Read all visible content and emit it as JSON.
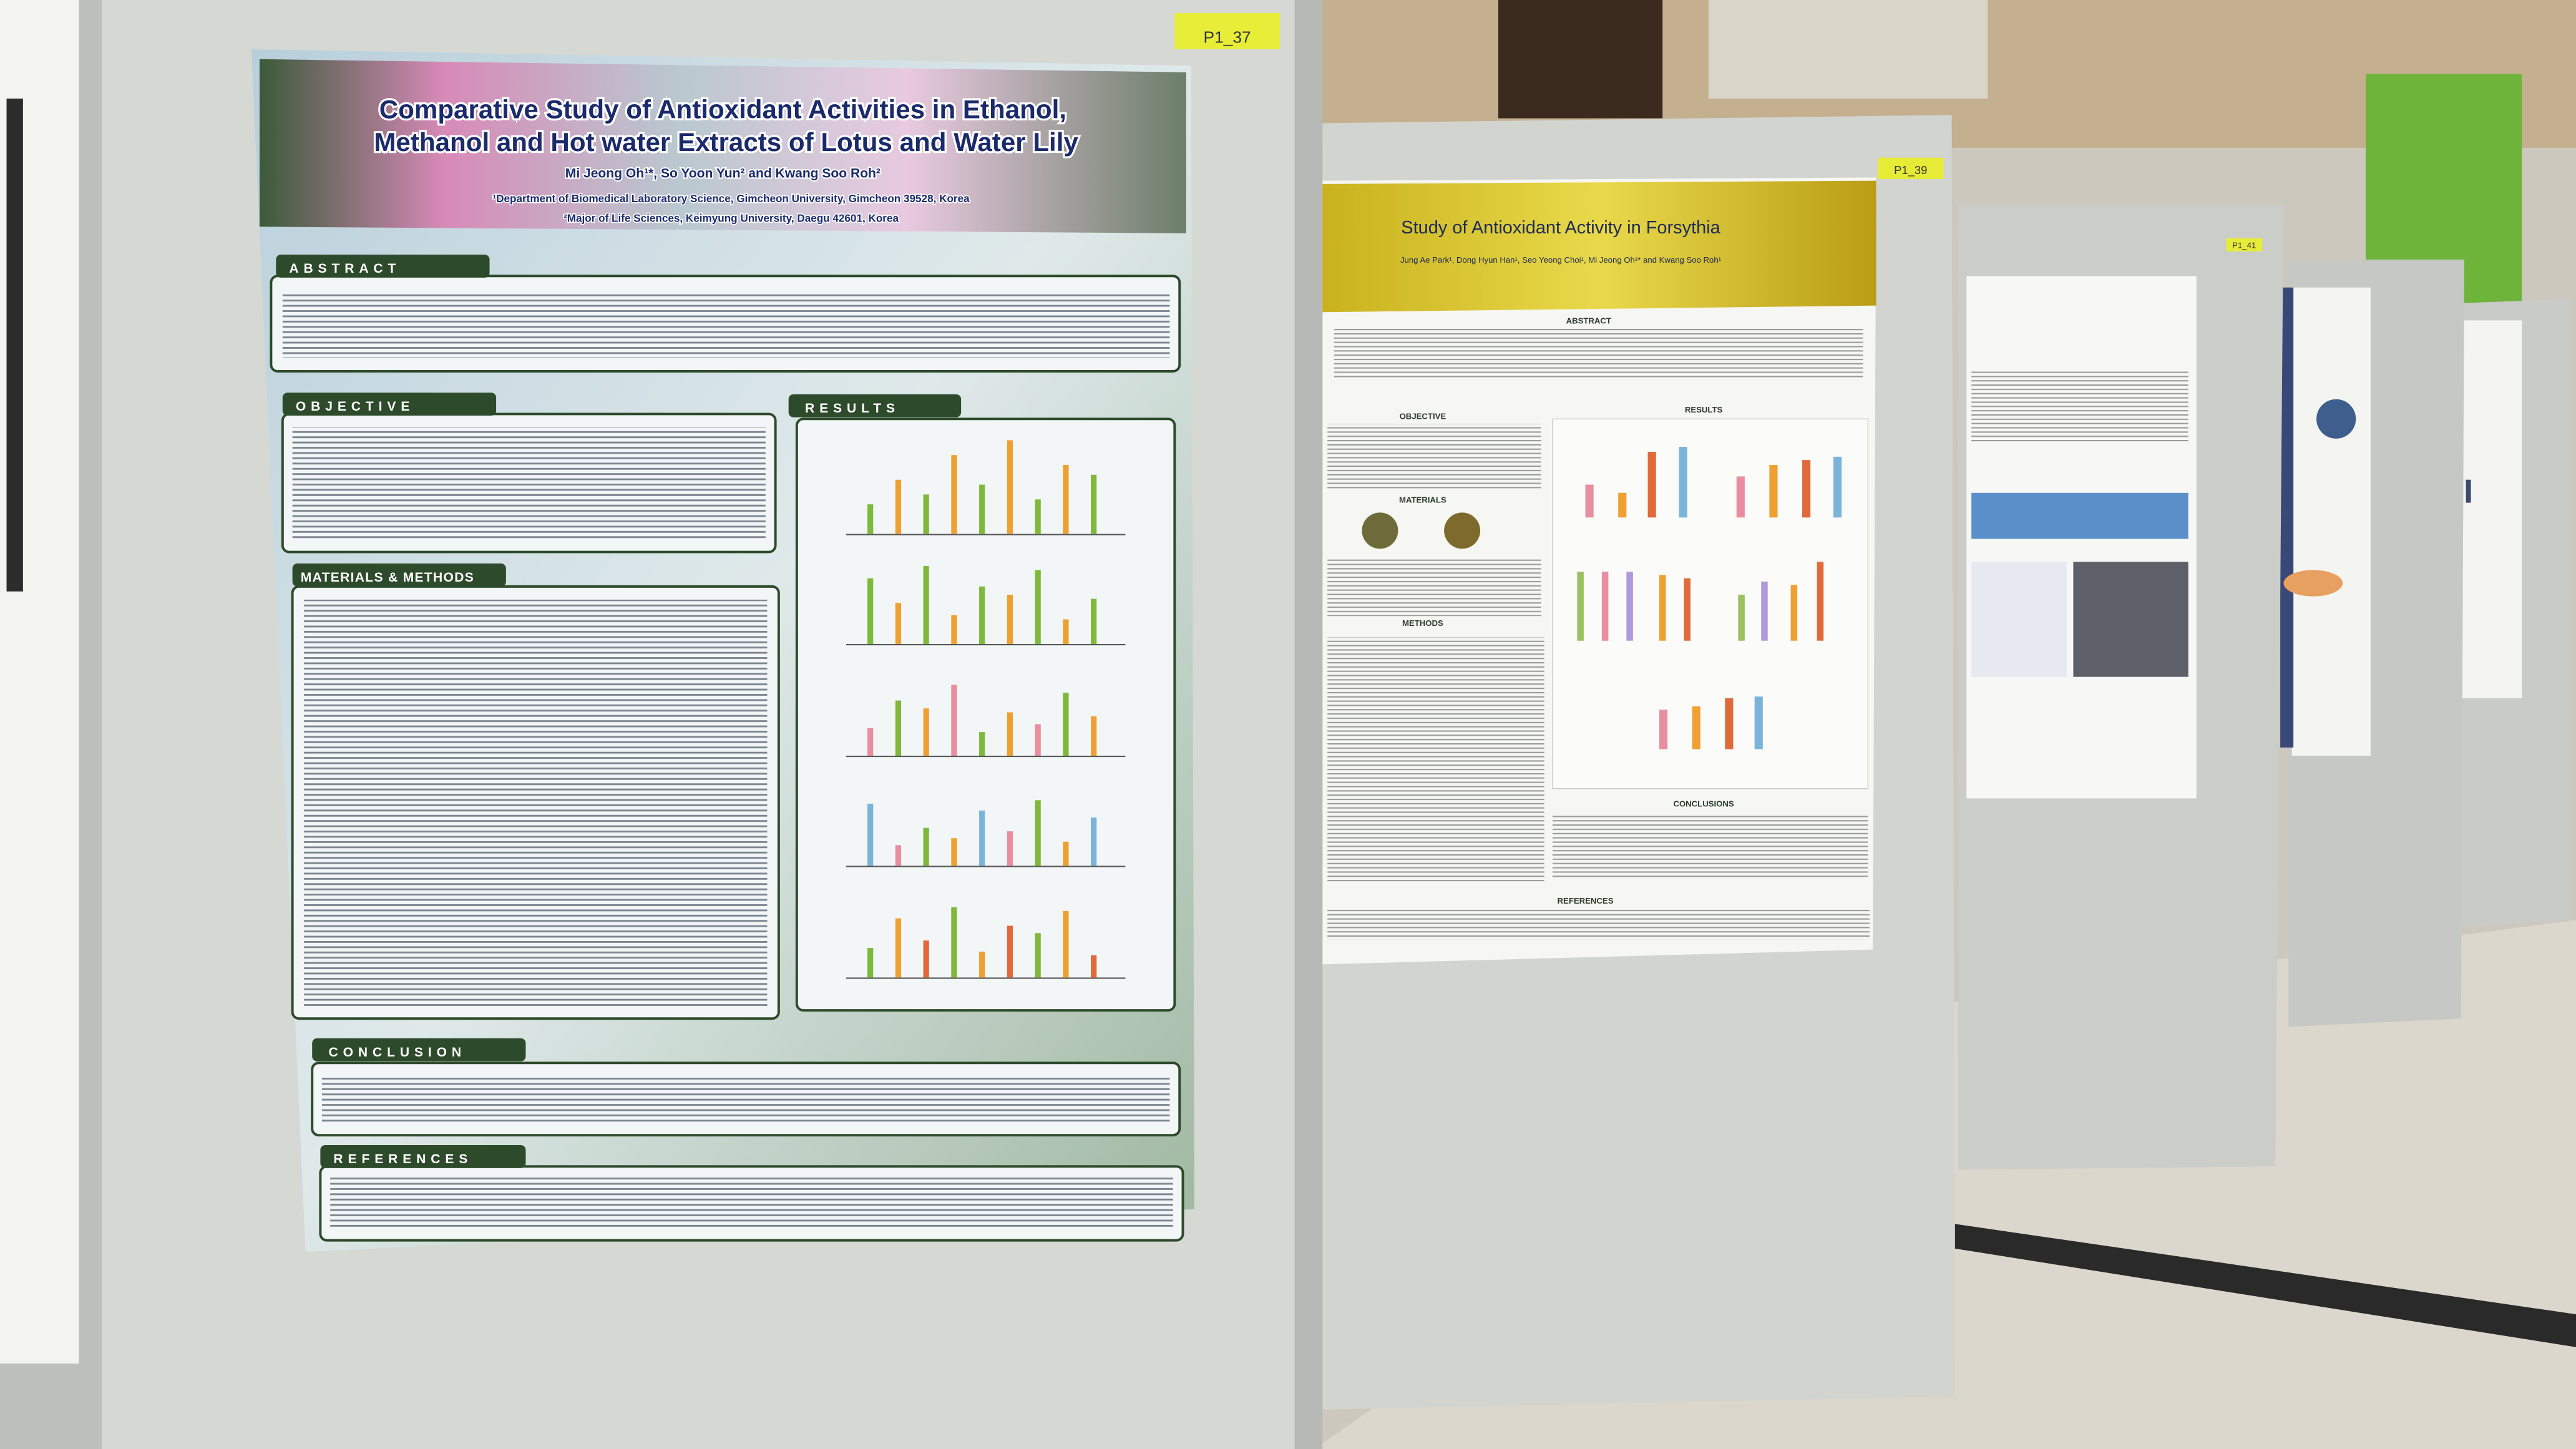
{
  "posters": [
    {
      "label": "P1_37",
      "title_lines": [
        "Comparative Study of Antioxidant Activities in Ethanol,",
        "Methanol and Hot water Extracts of Lotus and Water Lily"
      ],
      "authors": "Mi Jeong Oh¹*, So Yoon Yun² and Kwang Soo Roh²",
      "affiliations": [
        "¹Department of Biomedical Laboratory Science, Gimcheon University, Gimcheon 39528, Korea",
        "²Major of Life Sciences, Keimyung University, Daegu 42601, Korea"
      ],
      "sections": [
        "ABSTRACT",
        "OBJECTIVE",
        "RESULTS",
        "MATERIALS & METHODS",
        "CONCLUSION",
        "REFERENCES"
      ]
    },
    {
      "label": "P1_39",
      "title": "Study of Antioxidant Activity in Forsythia",
      "authors": "Jung Ae Park¹, Dong Hyun Han¹, Seo Yeong Choi¹, Mi Jeong Oh²* and Kwang Soo Roh¹",
      "sections": [
        "ABSTRACT",
        "OBJECTIVE",
        "RESULTS",
        "MATERIALS",
        "METHODS",
        "CONCLUSIONS",
        "REFERENCES"
      ]
    },
    {
      "label": "P1_41"
    }
  ]
}
